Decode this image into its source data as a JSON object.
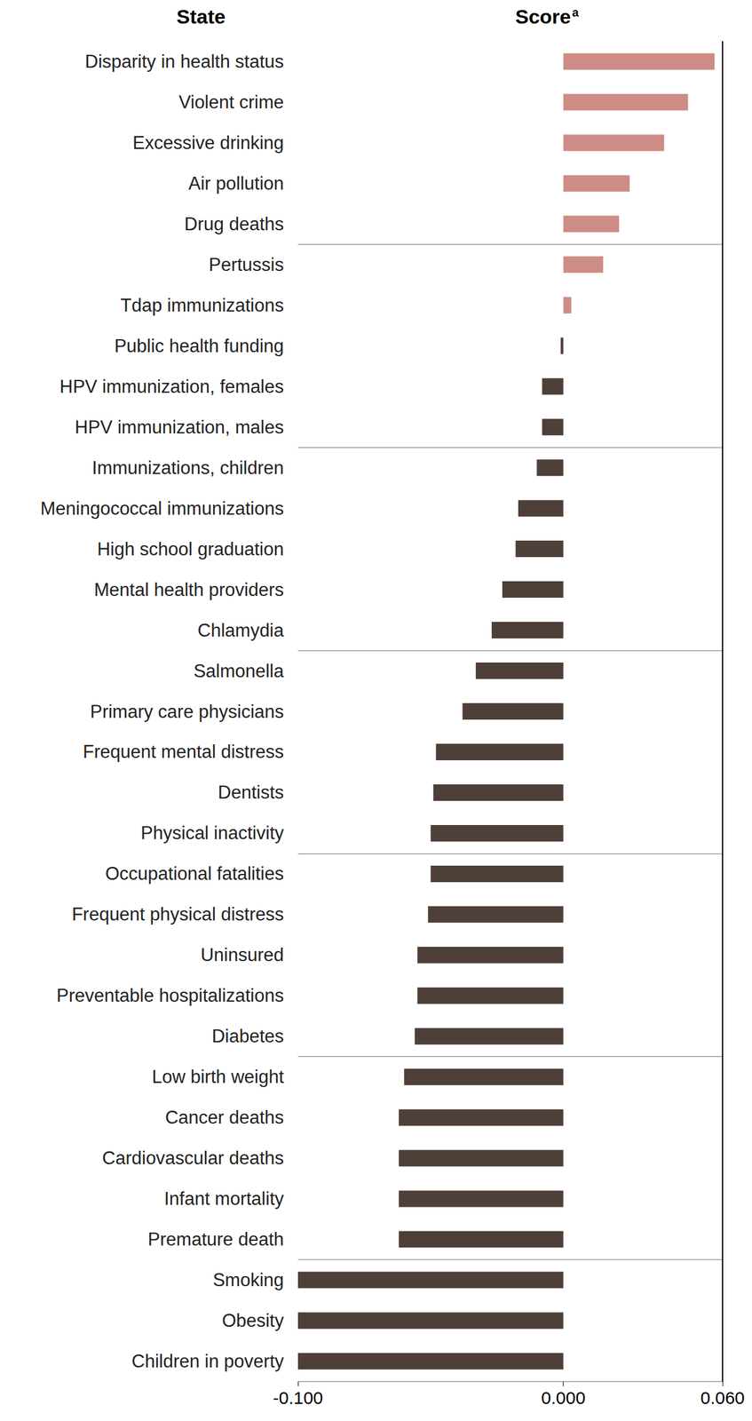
{
  "chart_data": {
    "type": "bar",
    "orientation": "horizontal",
    "category_header": "State",
    "value_header": "Score",
    "value_header_note": "a",
    "categories": [
      "Disparity in health status",
      "Violent crime",
      "Excessive drinking",
      "Air pollution",
      "Drug deaths",
      "Pertussis",
      "Tdap immunizations",
      "Public health funding",
      "HPV immunization, females",
      "HPV immunization, males",
      "Immunizations, children",
      "Meningococcal immunizations",
      "High school graduation",
      "Mental health providers",
      "Chlamydia",
      "Salmonella",
      "Primary care physicians",
      "Frequent mental distress",
      "Dentists",
      "Physical inactivity",
      "Occupational fatalities",
      "Frequent physical distress",
      "Uninsured",
      "Preventable hospitalizations",
      "Diabetes",
      "Low birth weight",
      "Cancer deaths",
      "Cardiovascular deaths",
      "Infant mortality",
      "Premature death",
      "Smoking",
      "Obesity",
      "Children in poverty"
    ],
    "values": [
      0.057,
      0.047,
      0.038,
      0.025,
      0.021,
      0.015,
      0.003,
      -0.001,
      -0.008,
      -0.008,
      -0.01,
      -0.017,
      -0.018,
      -0.023,
      -0.027,
      -0.033,
      -0.038,
      -0.048,
      -0.049,
      -0.05,
      -0.05,
      -0.051,
      -0.055,
      -0.055,
      -0.056,
      -0.06,
      -0.062,
      -0.062,
      -0.062,
      -0.062,
      -0.1,
      -0.1,
      -0.1
    ],
    "colors": [
      "#cd8c85",
      "#cd8c85",
      "#cd8c85",
      "#cd8c85",
      "#cd8c85",
      "#cd8c85",
      "#cd8c85",
      "#4f3f39",
      "#4f3f39",
      "#4f3f39",
      "#4f3f39",
      "#4f3f39",
      "#4f3f39",
      "#4f3f39",
      "#4f3f39",
      "#4f3f39",
      "#4f3f39",
      "#4f3f39",
      "#4f3f39",
      "#4f3f39",
      "#4f3f39",
      "#4f3f39",
      "#4f3f39",
      "#4f3f39",
      "#4f3f39",
      "#4f3f39",
      "#4f3f39",
      "#4f3f39",
      "#4f3f39",
      "#4f3f39",
      "#4f3f39",
      "#4f3f39",
      "#4f3f39"
    ],
    "xlim": [
      -0.1,
      0.06
    ],
    "xticks": [
      {
        "value": -0.1,
        "label": "-0.100"
      },
      {
        "value": 0,
        "label": "0.000"
      },
      {
        "value": 0.06,
        "label": "0.060"
      }
    ],
    "grid": false
  }
}
